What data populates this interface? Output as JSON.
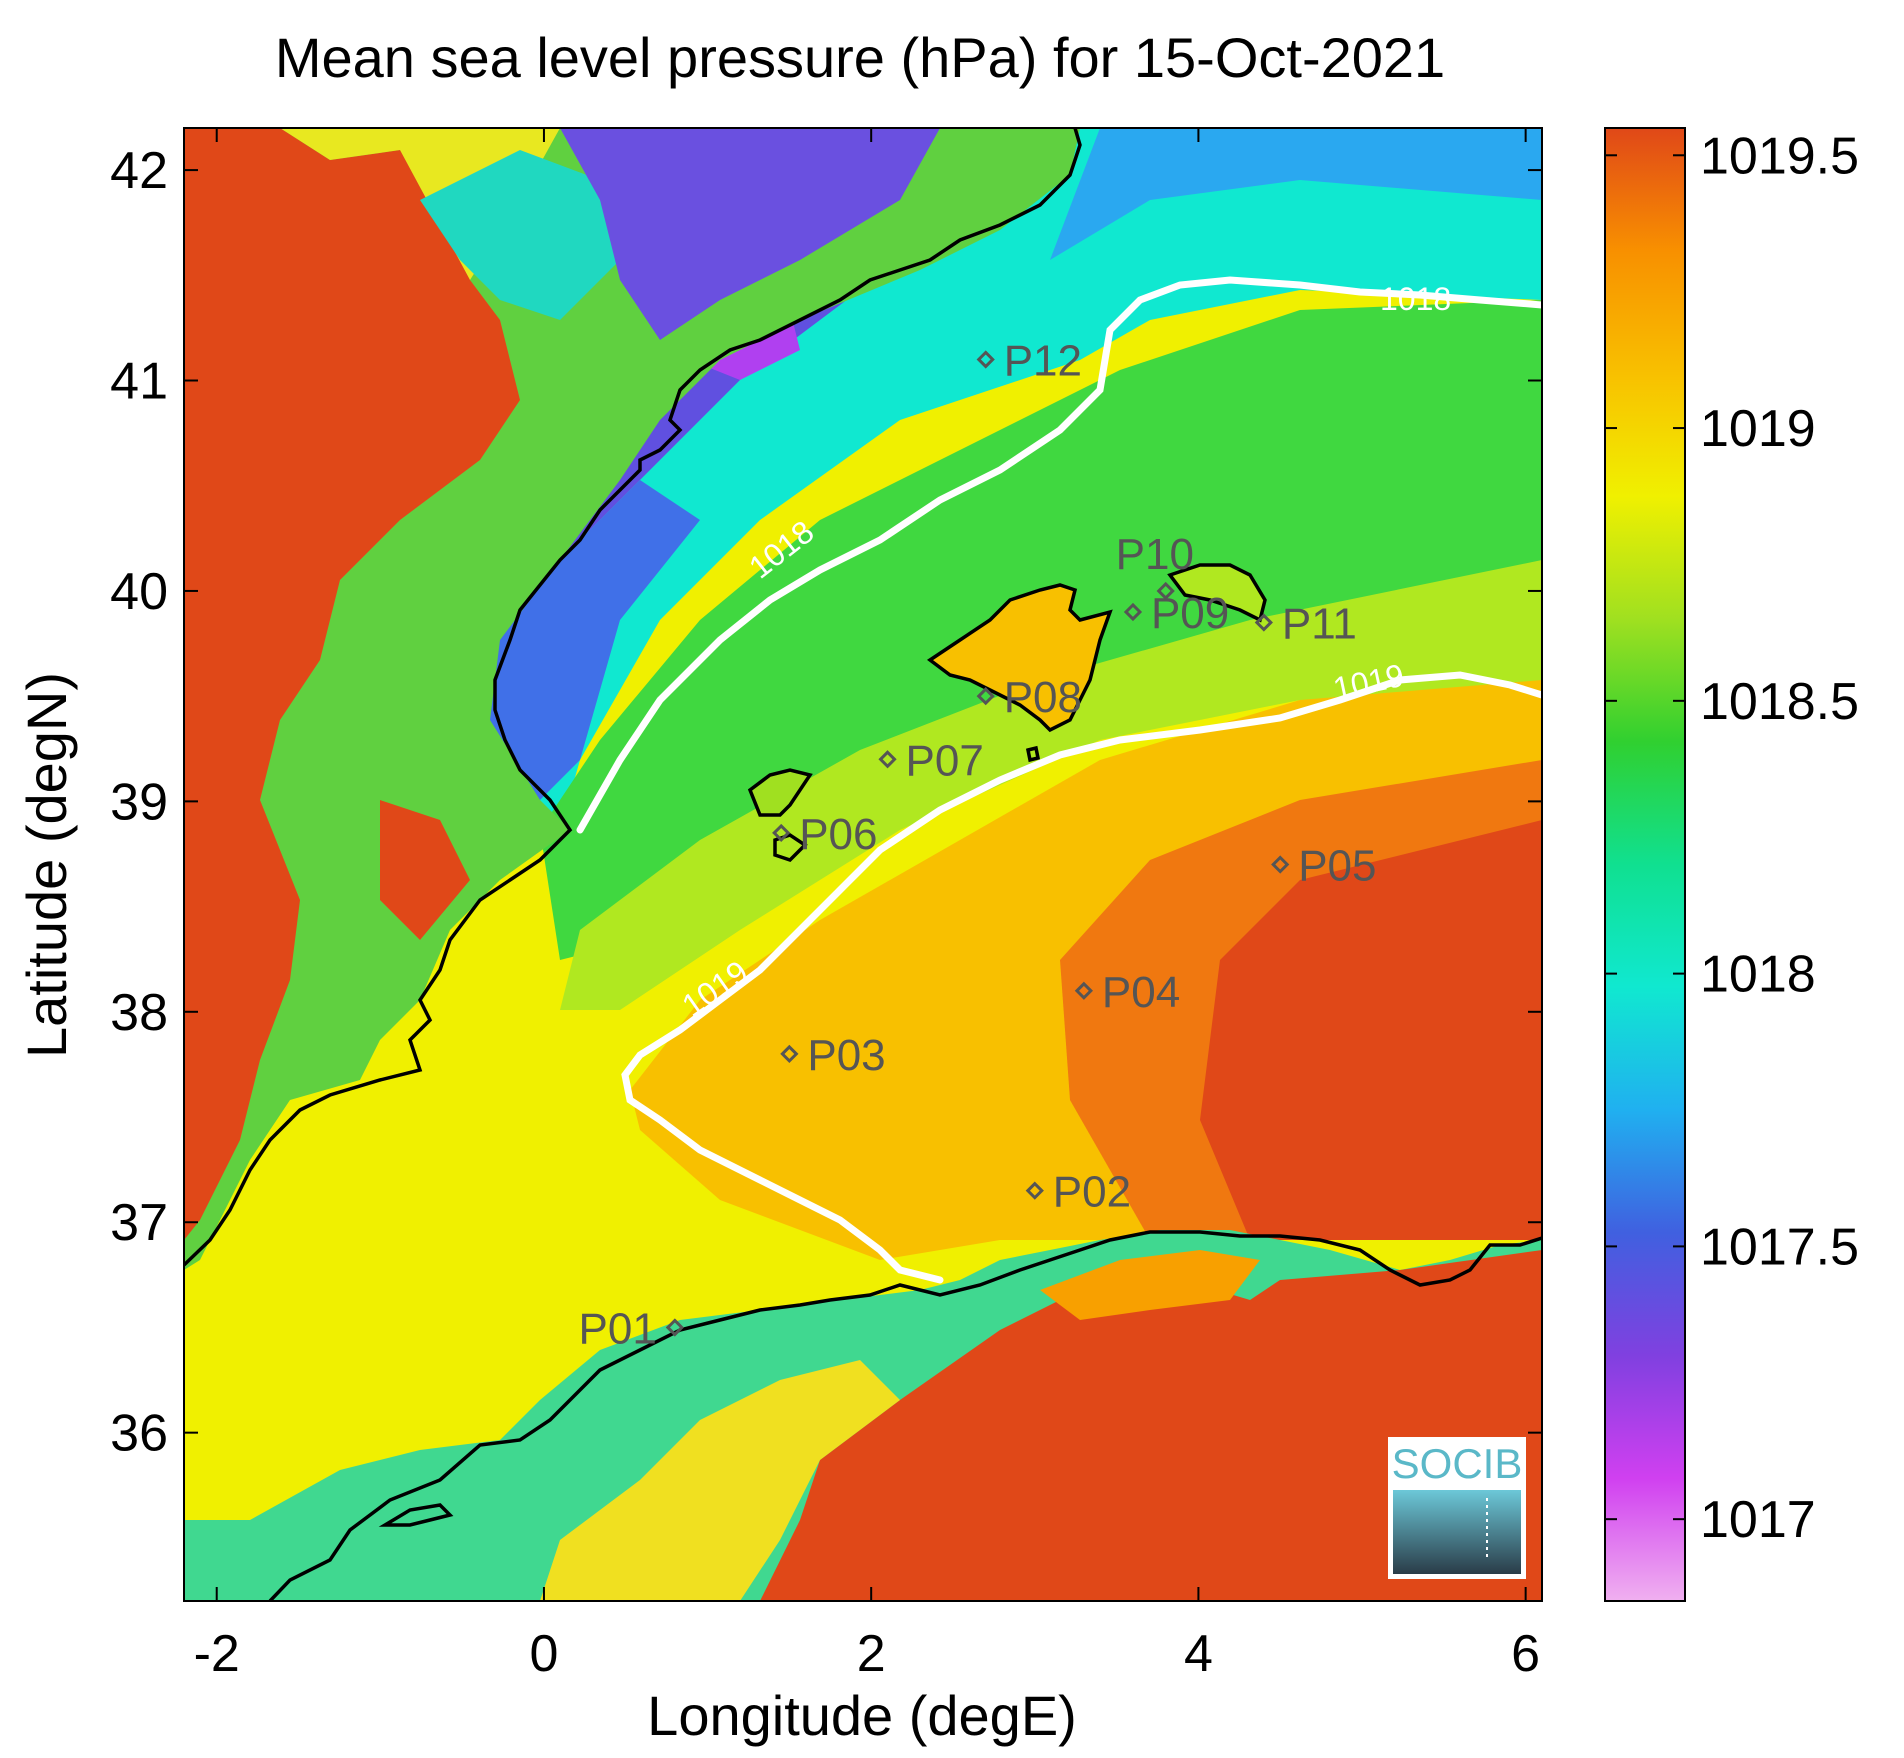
{
  "title": "Mean sea level pressure (hPa) for 15-Oct-2021",
  "x_axis": {
    "label": "Longitude (degE)",
    "range": [
      -2.2,
      6.1
    ],
    "ticks": [
      -2,
      0,
      2,
      4,
      6
    ],
    "tick_labels": [
      "-2",
      "0",
      "2",
      "4",
      "6"
    ]
  },
  "y_axis": {
    "label": "Latitude (degN)",
    "range": [
      35.2,
      42.2
    ],
    "ticks": [
      36,
      37,
      38,
      39,
      40,
      41,
      42
    ],
    "tick_labels": [
      "36",
      "37",
      "38",
      "39",
      "40",
      "41",
      "42"
    ]
  },
  "colorbar": {
    "range": [
      1016.85,
      1019.55
    ],
    "ticks": [
      1017,
      1017.5,
      1018,
      1018.5,
      1019,
      1019.5
    ],
    "tick_labels": [
      "1017",
      "1017.5",
      "1018",
      "1018.5",
      "1019",
      "1019.5"
    ],
    "colors": [
      "#f0b0f0",
      "#d040f0",
      "#8040e0",
      "#4060e0",
      "#20b0f0",
      "#10e8d0",
      "#10e090",
      "#30d030",
      "#a0e020",
      "#f0f000",
      "#f8c000",
      "#f89000",
      "#e04818"
    ]
  },
  "contours": [
    {
      "level": "1018",
      "label": "1018",
      "color": "#ffffff"
    },
    {
      "level": "1019",
      "label": "1019",
      "color": "#ffffff"
    }
  ],
  "stations": [
    {
      "name": "P01",
      "lon": 0.8,
      "lat": 36.5
    },
    {
      "name": "P02",
      "lon": 3.0,
      "lat": 37.15
    },
    {
      "name": "P03",
      "lon": 1.5,
      "lat": 37.8
    },
    {
      "name": "P04",
      "lon": 3.3,
      "lat": 38.1
    },
    {
      "name": "P05",
      "lon": 4.5,
      "lat": 38.7
    },
    {
      "name": "P06",
      "lon": 1.45,
      "lat": 38.85
    },
    {
      "name": "P07",
      "lon": 2.1,
      "lat": 39.2
    },
    {
      "name": "P08",
      "lon": 2.7,
      "lat": 39.5
    },
    {
      "name": "P09",
      "lon": 3.6,
      "lat": 39.9
    },
    {
      "name": "P10",
      "lon": 3.8,
      "lat": 40.0
    },
    {
      "name": "P11",
      "lon": 4.4,
      "lat": 39.85
    },
    {
      "name": "P12",
      "lon": 2.7,
      "lat": 41.1
    }
  ],
  "logo": {
    "text": "SOCIB",
    "color": "#5ab8c8"
  },
  "colors": {
    "land_high": "#e04818",
    "coast": "#000000",
    "station_marker": "#555555"
  }
}
